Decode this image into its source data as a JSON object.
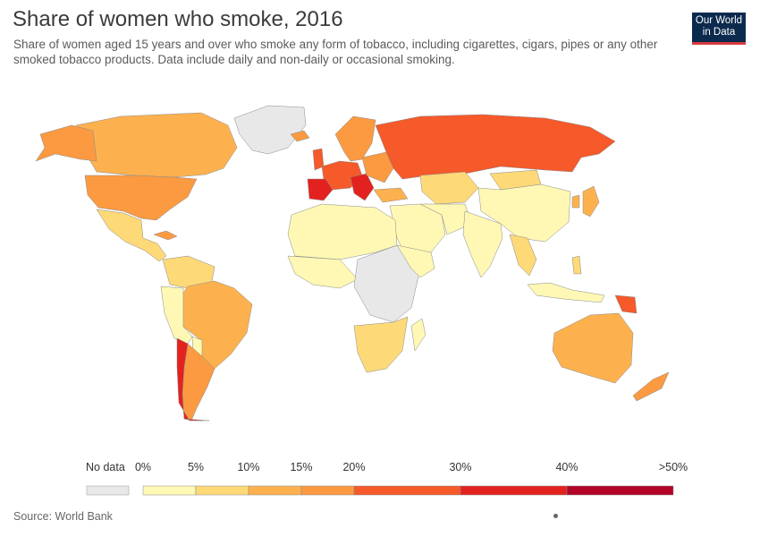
{
  "header": {
    "title": "Share of women who smoke, 2016",
    "subtitle": "Share of women aged 15 years and over who smoke any form of tobacco, including cigarettes, cigars, pipes or any other smoked tobacco products. Data include daily and non-daily or occasional smoking."
  },
  "logo": {
    "line1": "Our World",
    "line2": "in Data"
  },
  "legend": {
    "no_data_label": "No data",
    "no_data_color": "#e8e8e8",
    "ticks": [
      "0%",
      "5%",
      "10%",
      "15%",
      "20%",
      "30%",
      "40%",
      ">50%"
    ],
    "bins": [
      {
        "from": 0,
        "to": 5,
        "color": "#fef8b4"
      },
      {
        "from": 5,
        "to": 10,
        "color": "#fed978"
      },
      {
        "from": 10,
        "to": 15,
        "color": "#fdb14e"
      },
      {
        "from": 15,
        "to": 20,
        "color": "#fb9a41"
      },
      {
        "from": 20,
        "to": 30,
        "color": "#f6592a"
      },
      {
        "from": 30,
        "to": 40,
        "color": "#e3221f"
      },
      {
        "from": 40,
        "to": 50,
        "color": "#b30327"
      }
    ]
  },
  "source": "Source: World Bank"
}
